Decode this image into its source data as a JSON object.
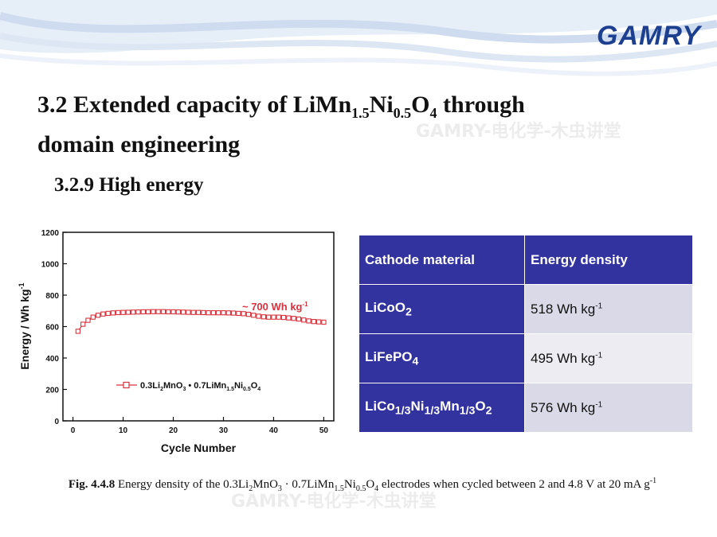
{
  "header": {
    "logo_text": "GAMRY"
  },
  "watermarks": [
    "GAMRY-电化学-木虫讲堂",
    "GAMRY-电化学-木虫讲堂"
  ],
  "slide": {
    "title_line1_prefix": "3.2 Extended capacity of LiMn",
    "title_sub1": "1.5",
    "title_mid": "Ni",
    "title_sub2": "0.5",
    "title_o": "O",
    "title_sub3": "4",
    "title_line1_suffix": " through",
    "title_line2": "domain engineering",
    "subtitle": "3.2.9 High energy"
  },
  "chart_data": {
    "type": "scatter",
    "xlabel": "Cycle Number",
    "ylabel": "Energy / Wh kg",
    "ylabel_sup": "-1",
    "xlim": [
      -2,
      52
    ],
    "ylim": [
      0,
      1200
    ],
    "xticks": [
      0,
      10,
      20,
      30,
      40,
      50
    ],
    "yticks": [
      0,
      200,
      400,
      600,
      800,
      1000,
      1200
    ],
    "annotation": "~ 700 Wh kg",
    "annotation_sup": "-1",
    "legend": {
      "placement": "left-middle",
      "prefix": "0.3Li",
      "s1": "2",
      "mid1": "MnO",
      "s2": "3",
      "mid2": " • 0.7LiMn",
      "s3": "1.5",
      "mid3": "Ni",
      "s4": "0.5",
      "mid4": "O",
      "s5": "4"
    },
    "series": [
      {
        "color": "#d9333f",
        "marker": "open-square",
        "x": [
          1,
          2,
          3,
          4,
          5,
          6,
          7,
          8,
          9,
          10,
          11,
          12,
          13,
          14,
          15,
          16,
          17,
          18,
          19,
          20,
          21,
          22,
          23,
          24,
          25,
          26,
          27,
          28,
          29,
          30,
          31,
          32,
          33,
          34,
          35,
          36,
          37,
          38,
          39,
          40,
          41,
          42,
          43,
          44,
          45,
          46,
          47,
          48,
          49,
          50
        ],
        "y": [
          570,
          615,
          640,
          660,
          672,
          680,
          684,
          687,
          689,
          690,
          691,
          692,
          693,
          694,
          694,
          695,
          695,
          695,
          694,
          694,
          693,
          692,
          691,
          690,
          690,
          689,
          688,
          688,
          688,
          688,
          687,
          686,
          684,
          682,
          678,
          672,
          666,
          662,
          660,
          660,
          660,
          658,
          655,
          652,
          648,
          642,
          636,
          632,
          630,
          628
        ]
      }
    ]
  },
  "table": {
    "headers": [
      "Cathode material",
      "Energy density"
    ],
    "rows": [
      {
        "material_parts": [
          "LiCoO",
          "2"
        ],
        "value": "518 Wh kg",
        "value_sup": "-1"
      },
      {
        "material_parts": [
          "LiFePO",
          "4"
        ],
        "value": "495 Wh kg",
        "value_sup": "-1"
      },
      {
        "material_parts": [
          "LiCo",
          "1/3",
          "Ni",
          "1/3",
          "Mn",
          "1/3",
          "O",
          "2"
        ],
        "value": "576 Wh kg",
        "value_sup": "-1"
      }
    ]
  },
  "caption": {
    "label": "Fig. 4.4.8",
    "t1": " Energy density of the 0.3Li",
    "s1": "2",
    "t2": "MnO",
    "s2": "3",
    "t3": " · 0.7LiMn",
    "s3": "1.5",
    "t4": "Ni",
    "s4": "0.5",
    "t5": "O",
    "s5": "4",
    "t6": "  electrodes when cycled between 2 and 4.8 V at 20 mA g",
    "sup": "-1"
  }
}
